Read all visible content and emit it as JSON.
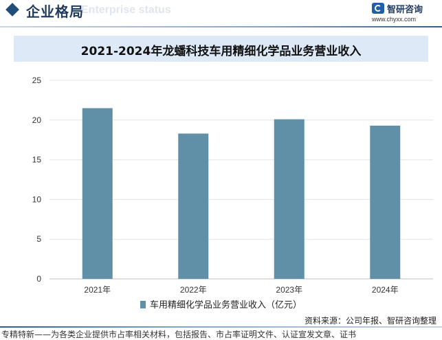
{
  "header": {
    "section_title": "企业格局",
    "section_ghost": "Enterprise status",
    "logo_name": "智研咨询",
    "logo_url": "www.chyxx.com"
  },
  "chart_data": {
    "type": "bar",
    "title": "2021-2024年龙蟠科技车用精细化学品业务营业收入",
    "categories": [
      "2021年",
      "2022年",
      "2023年",
      "2024年"
    ],
    "series": [
      {
        "name": "车用精细化学品业务营业收入（亿元）",
        "values": [
          21.5,
          18.3,
          20.1,
          19.3
        ],
        "color": "#5f90a7"
      }
    ],
    "ylim": [
      0,
      25
    ],
    "yticks": [
      0,
      5,
      10,
      15,
      20,
      25
    ],
    "grid": true,
    "legend_position": "bottom"
  },
  "footer": {
    "source": "资料来源：公司年报、智研咨询整理",
    "tagline": "专精特新——为各类企业提供市占率相关材料，包括报告、市占率证明文件、认证宣发文章、证书"
  }
}
